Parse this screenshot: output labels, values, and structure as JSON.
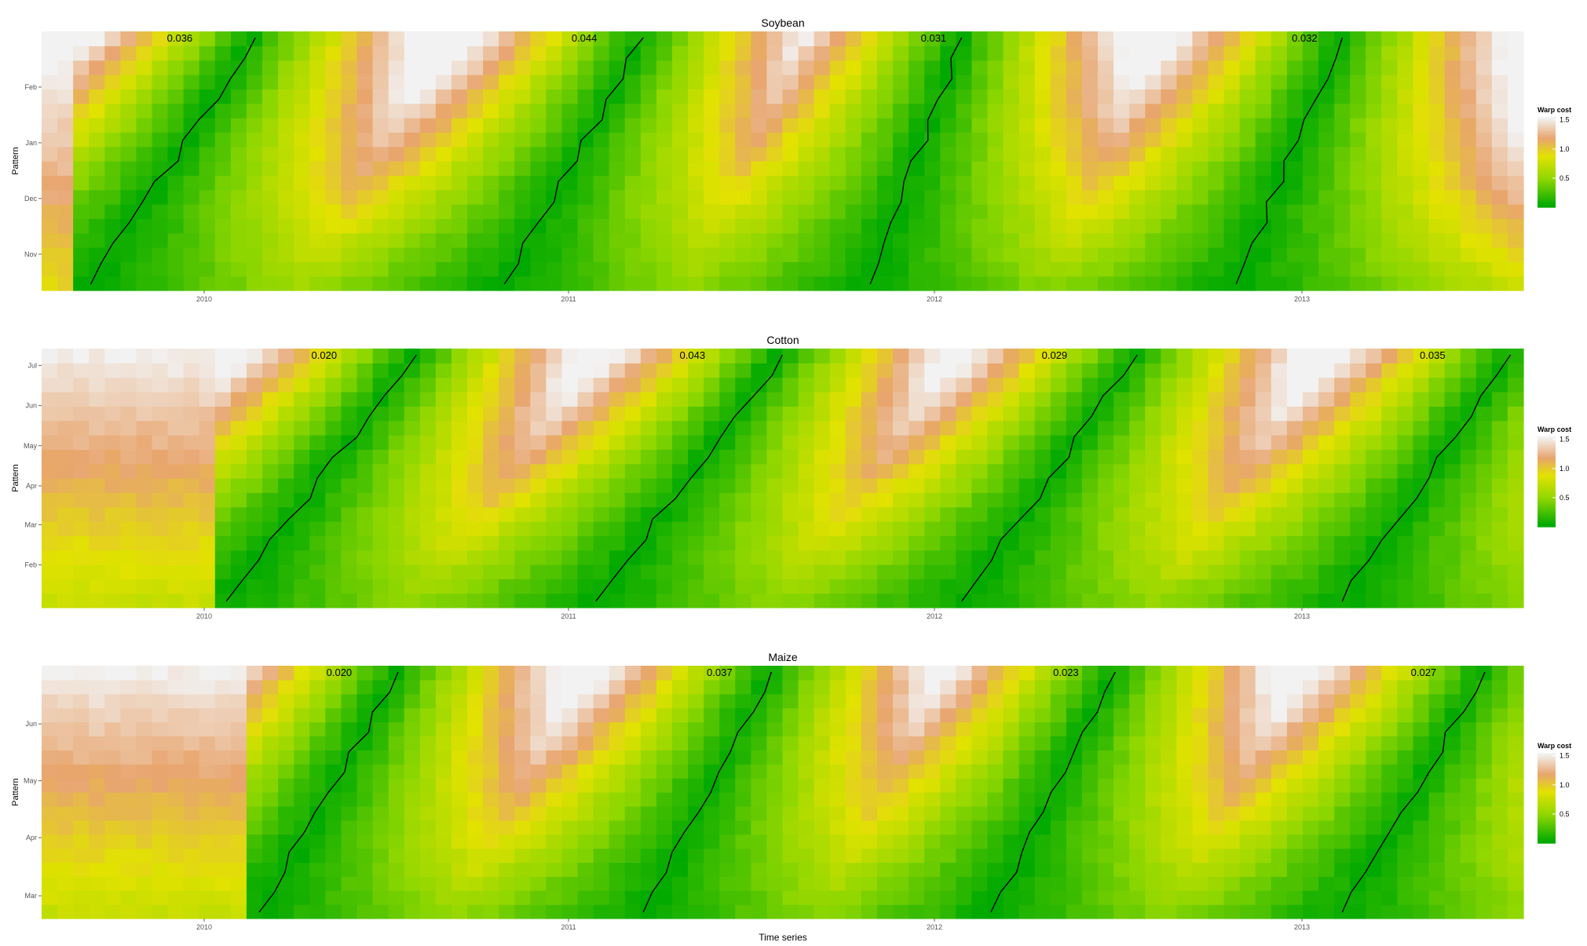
{
  "figure": {
    "xlabel": "Time series"
  },
  "legend": {
    "title": "Warp cost",
    "ticks": [
      "1.5",
      "1.0",
      "0.5"
    ]
  },
  "colors": {
    "low": "#00a900",
    "mid_low": "#8cd600",
    "mid": "#e2e200",
    "high": "#e8a56e",
    "max": "#f2f2f2",
    "path": "#000000"
  },
  "chart_data": [
    {
      "type": "heatmap",
      "title": "Soybean",
      "xlabel": "Time series",
      "ylabel": "Pattern",
      "x_tick_labels": [
        "2010",
        "2011",
        "2012",
        "2013"
      ],
      "y_tick_labels": [
        "Nov",
        "Dec",
        "Jan",
        "Feb"
      ],
      "value_range": [
        0,
        1.5
      ],
      "legend_title": "Warp cost",
      "legend_placement": "right",
      "annotations": [
        "0.036",
        "0.044",
        "0.031",
        "0.032"
      ],
      "alignments": [
        {
          "distance": 0.036,
          "start": 2009.69,
          "end": 2010.14
        },
        {
          "distance": 0.044,
          "start": 2010.82,
          "end": 2011.2
        },
        {
          "distance": 0.031,
          "start": 2011.82,
          "end": 2012.07
        },
        {
          "distance": 0.032,
          "start": 2012.82,
          "end": 2013.11
        }
      ]
    },
    {
      "type": "heatmap",
      "title": "Cotton",
      "xlabel": "Time series",
      "ylabel": "Pattern",
      "x_tick_labels": [
        "2010",
        "2011",
        "2012",
        "2013"
      ],
      "y_tick_labels": [
        "Feb",
        "Mar",
        "Apr",
        "May",
        "Jun",
        "Jul"
      ],
      "value_range": [
        0,
        1.5
      ],
      "legend_title": "Warp cost",
      "legend_placement": "right",
      "annotations": [
        "0.020",
        "0.043",
        "0.029",
        "0.035"
      ],
      "alignments": [
        {
          "distance": 0.02,
          "start": 2010.06,
          "end": 2010.58
        },
        {
          "distance": 0.043,
          "start": 2011.07,
          "end": 2011.58
        },
        {
          "distance": 0.029,
          "start": 2012.07,
          "end": 2012.55
        },
        {
          "distance": 0.035,
          "start": 2013.11,
          "end": 2013.57
        }
      ]
    },
    {
      "type": "heatmap",
      "title": "Maize",
      "xlabel": "Time series",
      "ylabel": "Pattern",
      "x_tick_labels": [
        "2010",
        "2011",
        "2012",
        "2013"
      ],
      "y_tick_labels": [
        "Mar",
        "Apr",
        "May",
        "Jun"
      ],
      "value_range": [
        0,
        1.5
      ],
      "legend_title": "Warp cost",
      "legend_placement": "right",
      "annotations": [
        "0.020",
        "0.037",
        "0.023",
        "0.027"
      ],
      "alignments": [
        {
          "distance": 0.02,
          "start": 2010.15,
          "end": 2010.53
        },
        {
          "distance": 0.037,
          "start": 2011.2,
          "end": 2011.55
        },
        {
          "distance": 0.023,
          "start": 2012.15,
          "end": 2012.49
        },
        {
          "distance": 0.027,
          "start": 2013.11,
          "end": 2013.5
        }
      ]
    }
  ]
}
